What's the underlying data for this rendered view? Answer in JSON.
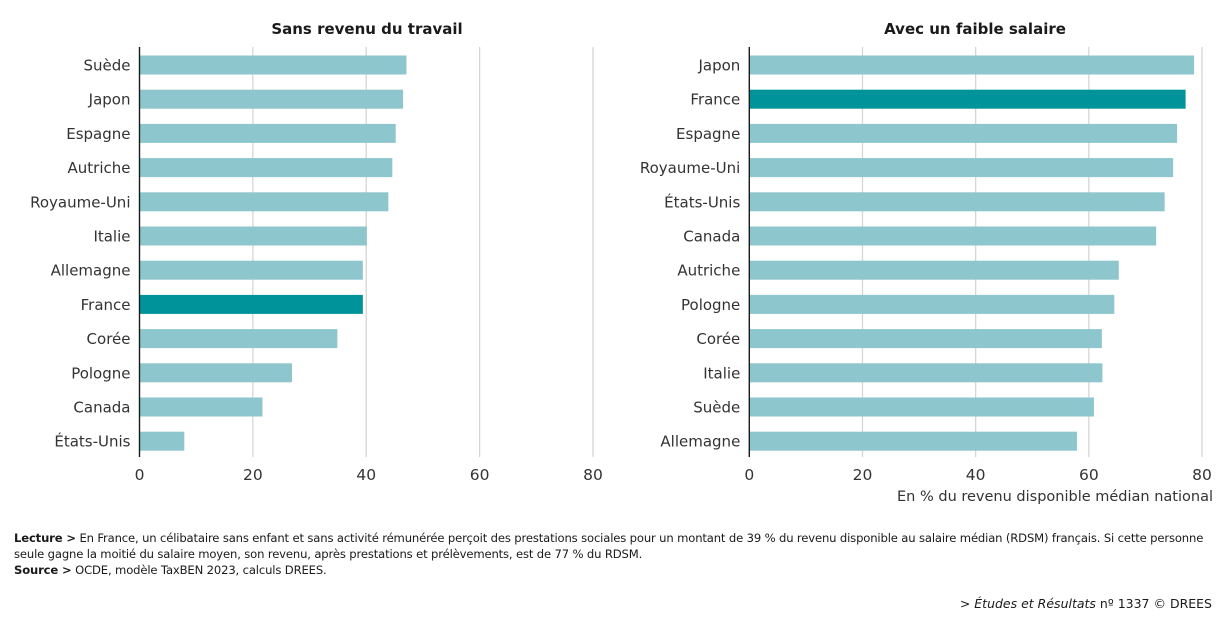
{
  "chart_data": [
    {
      "type": "bar",
      "orientation": "horizontal",
      "title": "Sans revenu du travail",
      "categories": [
        "Suède",
        "Japon",
        "Espagne",
        "Autriche",
        "Royaume-Uni",
        "Italie",
        "Allemagne",
        "France",
        "Corée",
        "Pologne",
        "Canada",
        "États-Unis"
      ],
      "values": [
        47.1,
        46.5,
        45.2,
        44.6,
        43.9,
        40.1,
        39.4,
        39.4,
        34.9,
        26.9,
        21.7,
        7.9
      ],
      "highlight": "France",
      "xlim": [
        0,
        80
      ],
      "xticks": [
        "0",
        "20",
        "40",
        "60",
        "80"
      ],
      "xlabel": "",
      "grid": true
    },
    {
      "type": "bar",
      "orientation": "horizontal",
      "title": "Avec un faible salaire",
      "categories": [
        "Japon",
        "France",
        "Espagne",
        "Royaume-Uni",
        "États-Unis",
        "Canada",
        "Autriche",
        "Pologne",
        "Corée",
        "Italie",
        "Suède",
        "Allemagne"
      ],
      "values": [
        78.6,
        77.1,
        75.6,
        74.9,
        73.4,
        71.9,
        65.3,
        64.5,
        62.3,
        62.4,
        60.9,
        57.9
      ],
      "highlight": "France",
      "xlim": [
        0,
        80
      ],
      "xticks": [
        "0",
        "20",
        "40",
        "60",
        "80"
      ],
      "xlabel": "En % du revenu disponible médian national",
      "grid": true
    }
  ],
  "colors": {
    "bar": "#8dc6cc",
    "highlight": "#00939a",
    "grid": "#d6d6d6",
    "axis": "#1a1a1a"
  },
  "notes": {
    "lecture_label": "Lecture >",
    "lecture_text": " En France, un célibataire sans enfant et sans activité rémunérée perçoit des prestations sociales pour un montant de 39 % du revenu disponible au salaire médian (RDSM) français. Si cette personne seule gagne la moitié du salaire moyen, son revenu, après prestations et prélèvements, est de 77 % du RDSM.",
    "source_label": "Source >",
    "source_text": " OCDE, modèle TaxBEN 2023, calculs DREES."
  },
  "credit": {
    "prefix": "> ",
    "publication": "Études et Résultats",
    "suffix": " nº 1337 © DREES"
  }
}
